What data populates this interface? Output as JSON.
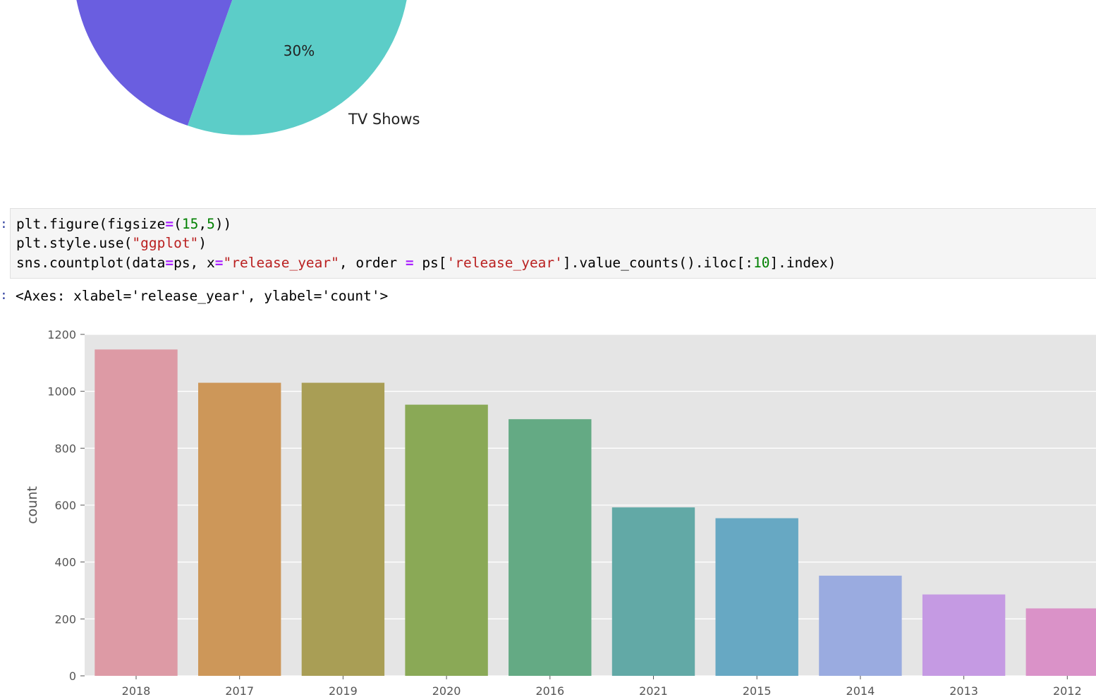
{
  "pie": {
    "labels": [
      "30%",
      "TV Shows"
    ],
    "colors": {
      "slice_a": "#6a5ee0",
      "slice_b": "#5ccdc8"
    }
  },
  "notebook": {
    "input_prompt": ":",
    "output_prompt": ":",
    "code_lines": [
      [
        {
          "t": "plt.figure(figsize"
        },
        {
          "t": "=",
          "c": "op"
        },
        {
          "t": "("
        },
        {
          "t": "15",
          "c": "num"
        },
        {
          "t": ","
        },
        {
          "t": "5",
          "c": "num"
        },
        {
          "t": "))"
        }
      ],
      [
        {
          "t": "plt.style.use("
        },
        {
          "t": "\"ggplot\"",
          "c": "str"
        },
        {
          "t": ")"
        }
      ],
      [
        {
          "t": "sns.countplot(data"
        },
        {
          "t": "=",
          "c": "op"
        },
        {
          "t": "ps, x"
        },
        {
          "t": "=",
          "c": "op"
        },
        {
          "t": "\"release_year\"",
          "c": "str"
        },
        {
          "t": ", order "
        },
        {
          "t": "=",
          "c": "op"
        },
        {
          "t": " ps["
        },
        {
          "t": "'release_year'",
          "c": "str"
        },
        {
          "t": "].value_counts().iloc[:"
        },
        {
          "t": "10",
          "c": "num"
        },
        {
          "t": "].index)"
        }
      ]
    ],
    "output_text": "<Axes: xlabel='release_year', ylabel='count'>"
  },
  "chart_data": {
    "type": "bar",
    "categories": [
      "2018",
      "2017",
      "2019",
      "2020",
      "2016",
      "2021",
      "2015",
      "2014",
      "2013",
      "2012"
    ],
    "values": [
      1147,
      1030,
      1030,
      953,
      902,
      592,
      554,
      352,
      286,
      237
    ],
    "colors": [
      "#dd9aa5",
      "#cd9759",
      "#a99e55",
      "#8aa956",
      "#64aa84",
      "#62a9a6",
      "#67a8c3",
      "#9aabe0",
      "#c59ae3",
      "#da92c8"
    ],
    "ylabel": "count",
    "xlabel": "",
    "ylim": [
      0,
      1200
    ],
    "yticks": [
      0,
      200,
      400,
      600,
      800,
      1000,
      1200
    ],
    "grid": true,
    "style": "ggplot",
    "background": "#e5e5e5"
  }
}
